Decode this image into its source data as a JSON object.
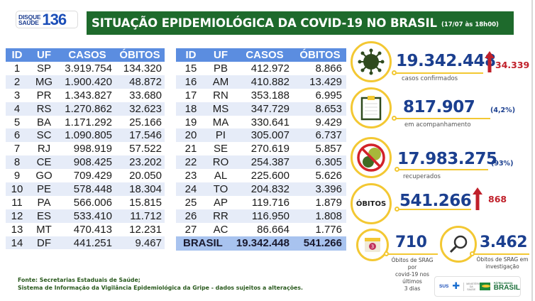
{
  "header": {
    "logo_line1": "DISQUE",
    "logo_line2": "SAÚDE",
    "logo_number": "136",
    "title": "SITUAÇÃO EPIDEMIOLÓGICA DA COVID-19 NO BRASIL",
    "date": "(17/07 às 18h00)"
  },
  "table": {
    "columns": [
      "ID",
      "UF",
      "CASOS",
      "ÓBITOS"
    ],
    "rows_left": [
      {
        "id": "1",
        "uf": "SP",
        "casos": "3.919.754",
        "obitos": "134.320"
      },
      {
        "id": "2",
        "uf": "MG",
        "casos": "1.900.420",
        "obitos": "48.872"
      },
      {
        "id": "3",
        "uf": "PR",
        "casos": "1.343.827",
        "obitos": "33.680"
      },
      {
        "id": "4",
        "uf": "RS",
        "casos": "1.270.862",
        "obitos": "32.623"
      },
      {
        "id": "5",
        "uf": "BA",
        "casos": "1.171.292",
        "obitos": "25.166"
      },
      {
        "id": "6",
        "uf": "SC",
        "casos": "1.090.805",
        "obitos": "17.546"
      },
      {
        "id": "7",
        "uf": "RJ",
        "casos": "998.919",
        "obitos": "57.522"
      },
      {
        "id": "8",
        "uf": "CE",
        "casos": "908.425",
        "obitos": "23.202"
      },
      {
        "id": "9",
        "uf": "GO",
        "casos": "709.429",
        "obitos": "20.050"
      },
      {
        "id": "10",
        "uf": "PE",
        "casos": "578.448",
        "obitos": "18.304"
      },
      {
        "id": "11",
        "uf": "PA",
        "casos": "566.006",
        "obitos": "15.815"
      },
      {
        "id": "12",
        "uf": "ES",
        "casos": "533.410",
        "obitos": "11.712"
      },
      {
        "id": "13",
        "uf": "MT",
        "casos": "470.413",
        "obitos": "12.231"
      },
      {
        "id": "14",
        "uf": "DF",
        "casos": "441.251",
        "obitos": "9.467"
      }
    ],
    "rows_right": [
      {
        "id": "15",
        "uf": "PB",
        "casos": "412.972",
        "obitos": "8.866"
      },
      {
        "id": "16",
        "uf": "AM",
        "casos": "410.882",
        "obitos": "13.429"
      },
      {
        "id": "17",
        "uf": "RN",
        "casos": "353.188",
        "obitos": "6.995"
      },
      {
        "id": "18",
        "uf": "MS",
        "casos": "347.729",
        "obitos": "8.653"
      },
      {
        "id": "19",
        "uf": "MA",
        "casos": "330.641",
        "obitos": "9.429"
      },
      {
        "id": "20",
        "uf": "PI",
        "casos": "305.007",
        "obitos": "6.737"
      },
      {
        "id": "21",
        "uf": "SE",
        "casos": "270.619",
        "obitos": "5.857"
      },
      {
        "id": "22",
        "uf": "RO",
        "casos": "254.387",
        "obitos": "6.305"
      },
      {
        "id": "23",
        "uf": "AL",
        "casos": "225.600",
        "obitos": "5.626"
      },
      {
        "id": "24",
        "uf": "TO",
        "casos": "204.832",
        "obitos": "3.396"
      },
      {
        "id": "25",
        "uf": "AP",
        "casos": "119.716",
        "obitos": "1.879"
      },
      {
        "id": "26",
        "uf": "RR",
        "casos": "116.950",
        "obitos": "1.808"
      },
      {
        "id": "27",
        "uf": "AC",
        "casos": "86.664",
        "obitos": "1.776"
      }
    ],
    "total": {
      "label": "BRASIL",
      "casos": "19.342.448",
      "obitos": "541.266"
    }
  },
  "stats": {
    "confirmed": {
      "value": "19.342.448",
      "delta": "34.339",
      "label": "casos confirmados",
      "icon": "virus-icon"
    },
    "monitoring": {
      "value": "817.907",
      "pct": "(4,2%)",
      "label": "em acompanhamento",
      "icon": "clipboard-icon"
    },
    "recovered": {
      "value": "17.983.275",
      "pct": "(93%)",
      "label": "recuperados",
      "icon": "no-virus-icon"
    },
    "deaths": {
      "badge": "ÓBITOS",
      "value": "541.266",
      "delta": "868"
    },
    "srag_3days": {
      "value": "710",
      "label_l1": "Óbitos de SRAG por",
      "label_l2": "covid-19 nos últimos",
      "label_l3": "3 dias",
      "calendar_number": "3"
    },
    "srag_investigation": {
      "value": "3.462",
      "label_l1": "Óbitos de SRAG em",
      "label_l2": "investigação"
    }
  },
  "footer": {
    "line1": "Fonte: Secretarias Estaduais de Saúde;",
    "line2": "Sistema de Informação da Vigilância Epidemiológica da Gripe - dados sujeitos a alterações."
  },
  "gov_logos": {
    "sus": "SUS",
    "ministry": "MINISTÉRIO DA SAÚDE",
    "patria": "PÁTRIA AMADA",
    "brasil": "BRASIL"
  },
  "colors": {
    "title_green": "#1e6a2c",
    "table_header_blue": "#5b8de0",
    "total_row_blue": "#a8c3ef",
    "accent_yellow": "#f3c833",
    "number_navy": "#1b3f8f",
    "delta_red": "#c0202a"
  }
}
